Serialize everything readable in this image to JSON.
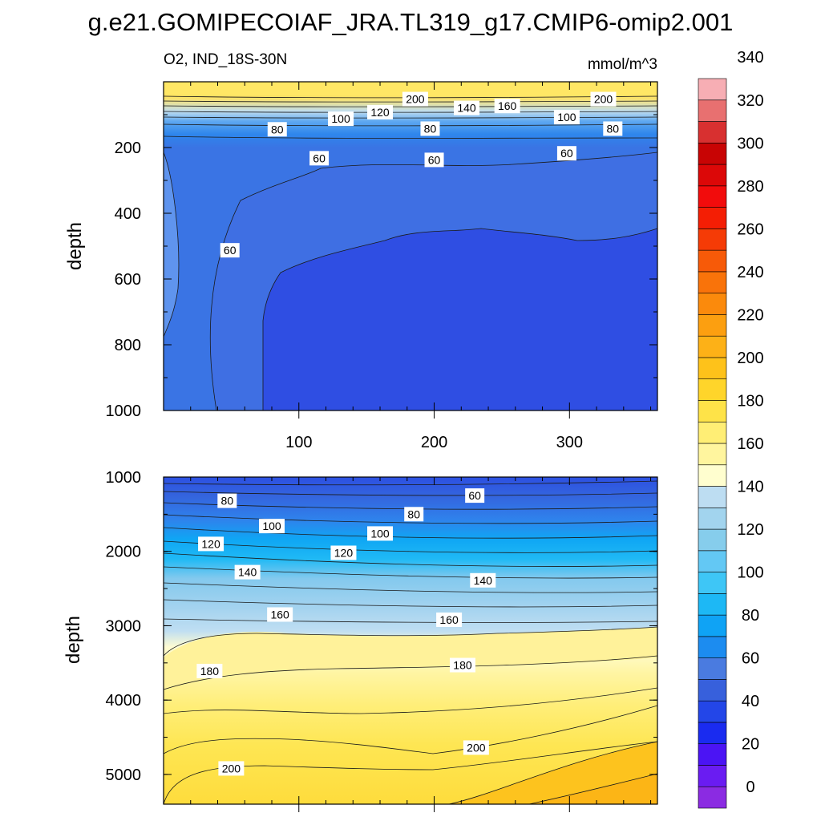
{
  "chart_data": {
    "type": "heatmap",
    "title": "g.e21.GOMIPECOIAF_JRA.TL319_g17.CMIP6-omip2.001",
    "variable_label": "O2, IND_18S-30N",
    "units_label": "mmol/m^3",
    "panels": [
      {
        "name": "upper",
        "ylabel": "depth",
        "xlim": [
          0,
          365
        ],
        "ylim": [
          1000,
          0
        ],
        "xticks": [
          "100",
          "200",
          "300"
        ],
        "yticks": [
          "200",
          "400",
          "600",
          "800",
          "1000"
        ],
        "contour_labels": [
          {
            "value": "200",
            "x": 186,
            "y": 55
          },
          {
            "value": "200",
            "x": 325,
            "y": 55
          },
          {
            "value": "140",
            "x": 224,
            "y": 82
          },
          {
            "value": "160",
            "x": 254,
            "y": 76
          },
          {
            "value": "120",
            "x": 160,
            "y": 95
          },
          {
            "value": "100",
            "x": 131,
            "y": 115
          },
          {
            "value": "100",
            "x": 298,
            "y": 110
          },
          {
            "value": "80",
            "x": 84,
            "y": 147
          },
          {
            "value": "80",
            "x": 197,
            "y": 145
          },
          {
            "value": "80",
            "x": 332,
            "y": 145
          },
          {
            "value": "60",
            "x": 115,
            "y": 235
          },
          {
            "value": "60",
            "x": 200,
            "y": 240
          },
          {
            "value": "60",
            "x": 298,
            "y": 220
          },
          {
            "value": "60",
            "x": 49,
            "y": 515
          }
        ]
      },
      {
        "name": "lower",
        "ylabel": "depth",
        "xlim": [
          0,
          365
        ],
        "ylim": [
          5400,
          1000
        ],
        "xticks": [],
        "yticks": [
          "1000",
          "2000",
          "3000",
          "4000",
          "5000"
        ],
        "contour_labels": [
          {
            "value": "60",
            "x": 230,
            "y": 1260
          },
          {
            "value": "80",
            "x": 47,
            "y": 1330
          },
          {
            "value": "80",
            "x": 185,
            "y": 1510
          },
          {
            "value": "100",
            "x": 80,
            "y": 1670
          },
          {
            "value": "100",
            "x": 160,
            "y": 1770
          },
          {
            "value": "120",
            "x": 35,
            "y": 1910
          },
          {
            "value": "120",
            "x": 133,
            "y": 2030
          },
          {
            "value": "140",
            "x": 62,
            "y": 2290
          },
          {
            "value": "140",
            "x": 236,
            "y": 2400
          },
          {
            "value": "160",
            "x": 86,
            "y": 2860
          },
          {
            "value": "160",
            "x": 211,
            "y": 2930
          },
          {
            "value": "180",
            "x": 34,
            "y": 3620
          },
          {
            "value": "180",
            "x": 221,
            "y": 3540
          },
          {
            "value": "200",
            "x": 50,
            "y": 4930
          },
          {
            "value": "200",
            "x": 231,
            "y": 4650
          }
        ]
      }
    ],
    "colorbar": {
      "tick_labels": [
        "0",
        "20",
        "40",
        "60",
        "80",
        "100",
        "120",
        "140",
        "160",
        "180",
        "200",
        "220",
        "240",
        "260",
        "280",
        "300",
        "320",
        "340"
      ],
      "colors": [
        "#8B2BE2",
        "#6A1CF2",
        "#4B14F4",
        "#1A2BF0",
        "#2346E8",
        "#3760DC",
        "#4A7BE0",
        "#1C8CF0",
        "#0FA3F5",
        "#1DB8F5",
        "#3EC6F6",
        "#63C8F4",
        "#86CDEC",
        "#A2D4EE",
        "#BDDDF2",
        "#FFFECF",
        "#FFF59E",
        "#FFEE75",
        "#FEE348",
        "#FFD52A",
        "#FEC21A",
        "#FDB117",
        "#FC9F10",
        "#FB8A0C",
        "#F9730A",
        "#F75A08",
        "#F53B06",
        "#F41E04",
        "#F20C0C",
        "#DC0808",
        "#C80404",
        "#D83030",
        "#E87070",
        "#F7AEB4"
      ]
    }
  }
}
